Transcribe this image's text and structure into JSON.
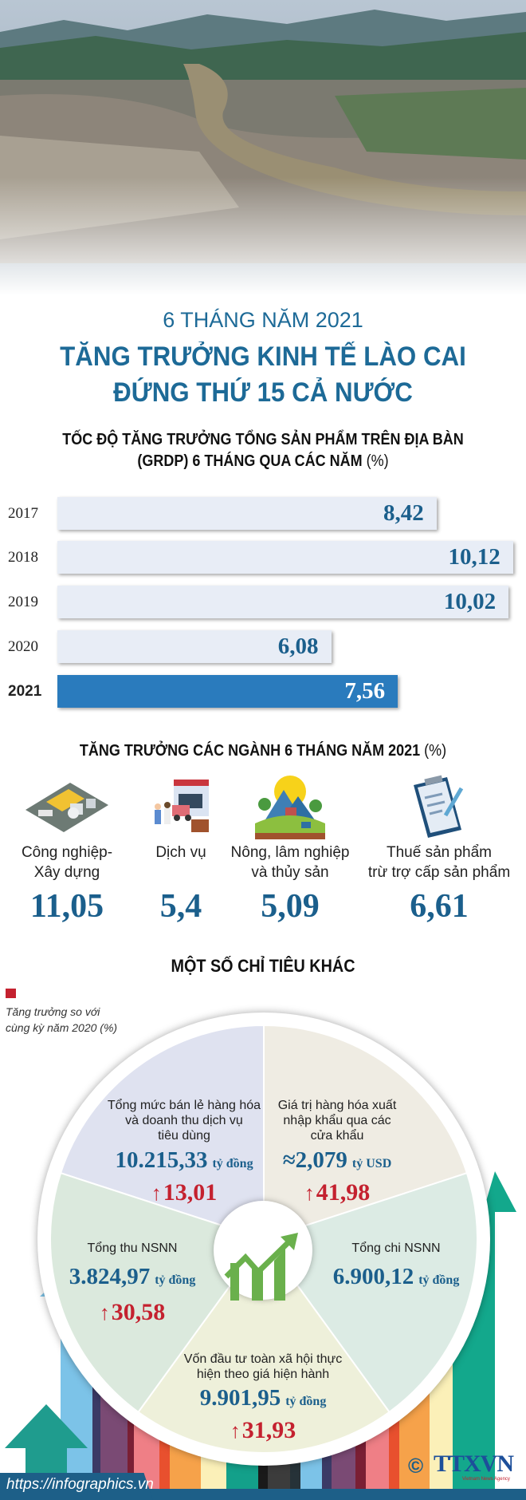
{
  "header": {
    "period": "6 THÁNG NĂM 2021",
    "title_line1": "TĂNG TRƯỞNG KINH TẾ LÀO CAI",
    "title_line2": "ĐỨNG THỨ 15 CẢ NƯỚC"
  },
  "chart_data": {
    "type": "bar",
    "orientation": "horizontal",
    "title_line1": "TỐC ĐỘ TĂNG TRƯỞNG TỔNG SẢN PHẨM TRÊN ĐỊA BÀN",
    "title_line2": "(GRDP) 6 THÁNG QUA CÁC NĂM",
    "unit": "(%)",
    "categories": [
      "2017",
      "2018",
      "2019",
      "2020",
      "2021"
    ],
    "values": [
      8.42,
      10.12,
      10.02,
      6.08,
      7.56
    ],
    "labels": [
      "8,42",
      "10,12",
      "10,02",
      "6,08",
      "7,56"
    ],
    "highlight": "2021",
    "colors": {
      "bar": "#e8edf6",
      "highlight": "#2a7bbd",
      "value": "#1b5f8c"
    }
  },
  "sectors": {
    "title": "TĂNG TRƯỞNG CÁC NGÀNH 6 THÁNG NĂM 2021",
    "unit": "(%)",
    "items": [
      {
        "label1": "Công nghiệp-",
        "label2": "Xây dựng",
        "value": "11,05",
        "icon": "factory-icon"
      },
      {
        "label1": "Dịch vụ",
        "label2": "",
        "value": "5,4",
        "icon": "delivery-truck-icon"
      },
      {
        "label1": "Nông, lâm nghiệp",
        "label2": "và thủy sản",
        "value": "5,09",
        "icon": "farm-landscape-icon"
      },
      {
        "label1": "Thuế sản phẩm",
        "label2": "trừ trợ cấp sản phẩm",
        "value": "6,61",
        "icon": "clipboard-icon"
      }
    ]
  },
  "other": {
    "title": "MỘT SỐ CHỈ TIÊU KHÁC",
    "legend_line1": "Tăng trưởng so với",
    "legend_line2": "cùng kỳ năm 2020 (%)",
    "legend_color": "#c4212f",
    "items": [
      {
        "label": [
          "Tổng mức bán lẻ hàng hóa",
          "và doanh thu dịch vụ",
          "tiêu dùng"
        ],
        "value": "10.215,33",
        "unit": "tỷ đồng",
        "growth": "13,01",
        "color": "#dfe2f0"
      },
      {
        "label": [
          "Giá trị hàng hóa xuất",
          "nhập khẩu qua các",
          "cửa khẩu"
        ],
        "value": "≈2,079",
        "unit": "tỷ USD",
        "growth": "41,98",
        "color": "#efece3"
      },
      {
        "label": [
          "Tổng chi NSNN"
        ],
        "value": "6.900,12",
        "unit": "tỷ đồng",
        "growth": "",
        "color": "#dcebe4"
      },
      {
        "label": [
          "Vốn đầu tư toàn xã hội thực",
          "hiện theo giá hiện hành"
        ],
        "value": "9.901,95",
        "unit": "tỷ đồng",
        "growth": "31,93",
        "color": "#eef0da"
      },
      {
        "label": [
          "Tổng thu NSNN"
        ],
        "value": "3.824,97",
        "unit": "tỷ đồng",
        "growth": "30,58",
        "color": "#dbe9dd"
      }
    ],
    "up_arrow": "↑"
  },
  "footer": {
    "url": "https://infographics.vn",
    "copyright": "©",
    "logo": "TTXVN",
    "logo_sub": "Vietnam News Agency"
  }
}
